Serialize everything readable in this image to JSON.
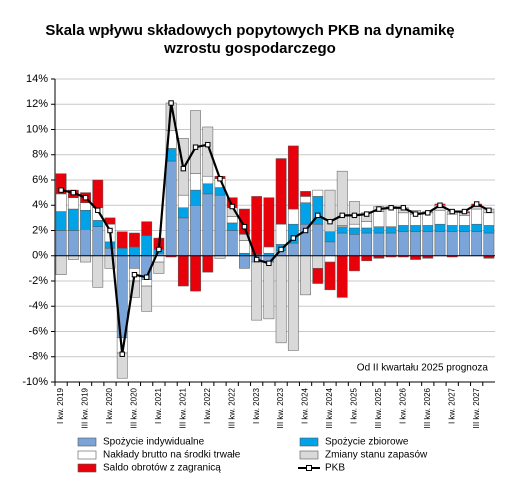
{
  "chart_data": {
    "type": "bar",
    "stacked": true,
    "title": "Skala wpływu składowych popytowych PKB na dynamikę wzrostu gospodarczego",
    "annotation": "Od II kwartału 2025 prognoza",
    "categories": [
      "I kw. 2019",
      null,
      "III kw. 2019",
      null,
      "I kw. 2020",
      null,
      "III kw. 2020",
      null,
      "I kw. 2021",
      null,
      "III kw. 2021",
      null,
      "I kw. 2022",
      null,
      "III kw. 2022",
      null,
      "I kw. 2023",
      null,
      "III kw. 2023",
      null,
      "I kw. 2024",
      null,
      "III kw. 2024",
      null,
      "I kw. 2025",
      null,
      "III kw. 2025",
      null,
      "I kw. 2026",
      null,
      "III kw. 2026",
      null,
      "I kw. 2027",
      null,
      "III kw. 2027",
      null
    ],
    "ylim": [
      -10,
      14
    ],
    "yticks": [
      {
        "value": -10,
        "label": "-10%"
      },
      {
        "value": -8,
        "label": "-8%"
      },
      {
        "value": -6,
        "label": "-6%"
      },
      {
        "value": -4,
        "label": "-4%"
      },
      {
        "value": -2,
        "label": "-2%"
      },
      {
        "value": 0,
        "label": "0%"
      },
      {
        "value": 2,
        "label": "2%"
      },
      {
        "value": 4,
        "label": "4%"
      },
      {
        "value": 6,
        "label": "6%"
      },
      {
        "value": 8,
        "label": "8%"
      },
      {
        "value": 10,
        "label": "10%"
      },
      {
        "value": 12,
        "label": "12%"
      },
      {
        "value": 14,
        "label": "14%"
      }
    ],
    "grid": true,
    "series": [
      {
        "name": "Spożycie indywidualne",
        "type": "bar",
        "color": "#7ba4d8",
        "values": [
          2.0,
          2.0,
          2.1,
          2.3,
          0.6,
          -6.5,
          -1.0,
          -1.9,
          0.2,
          7.5,
          3.0,
          4.0,
          4.9,
          4.8,
          2.0,
          -1.0,
          -0.5,
          -0.5,
          0.4,
          1.0,
          2.5,
          2.5,
          1.1,
          1.8,
          1.7,
          1.8,
          1.8,
          1.8,
          1.9,
          1.9,
          1.9,
          1.9,
          1.9,
          1.9,
          1.9,
          1.8
        ]
      },
      {
        "name": "Spożycie zbiorowe",
        "type": "bar",
        "color": "#00a2e8",
        "values": [
          1.5,
          1.7,
          1.5,
          0.5,
          0.5,
          0.6,
          0.7,
          1.6,
          0.3,
          1.0,
          0.8,
          1.2,
          0.8,
          0.6,
          0.6,
          0.2,
          0.1,
          0.2,
          0.5,
          1.5,
          1.7,
          2.2,
          0.8,
          0.5,
          0.5,
          0.4,
          0.5,
          0.5,
          0.5,
          0.5,
          0.5,
          0.6,
          0.5,
          0.5,
          0.6,
          0.6
        ]
      },
      {
        "name": "Nakłady brutto na środki trwałe",
        "type": "bar",
        "color": "#ffffff",
        "values": [
          1.4,
          0.9,
          0.6,
          1.0,
          1.4,
          -1.2,
          -1.0,
          -0.5,
          -0.5,
          1.4,
          1.0,
          1.3,
          0.6,
          0.7,
          0.5,
          1.0,
          0.0,
          0.5,
          1.6,
          1.2,
          0.5,
          0.5,
          -0.5,
          0.1,
          0.3,
          0.5,
          1.2,
          1.5,
          1.0,
          0.9,
          1.0,
          1.1,
          0.9,
          0.8,
          1.2,
          1.0
        ]
      },
      {
        "name": "Zmiany stanu zapasów",
        "type": "bar",
        "color": "#d9d9d9",
        "values": [
          -1.5,
          -0.3,
          -0.5,
          -2.5,
          -1.0,
          -2.0,
          -1.3,
          -2.0,
          -0.9,
          2.2,
          4.5,
          5.0,
          3.9,
          -0.2,
          0.7,
          0.5,
          -4.6,
          -4.5,
          -6.9,
          -7.5,
          -3.1,
          -1.0,
          3.3,
          4.3,
          1.8,
          0.7,
          0.4,
          0.1,
          0.4,
          0.3,
          0.1,
          0.4,
          0.2,
          0.2,
          0.2,
          0.3
        ]
      },
      {
        "name": "Saldo obrotów z zagranicą",
        "type": "bar",
        "color": "#e8000b",
        "values": [
          1.6,
          0.6,
          0.8,
          2.2,
          0.5,
          1.3,
          1.1,
          1.1,
          0.9,
          -0.1,
          -2.4,
          -2.8,
          -1.3,
          0.2,
          0.8,
          2.0,
          4.6,
          3.9,
          5.2,
          5.0,
          0.4,
          -1.2,
          -2.2,
          -3.3,
          -1.2,
          -0.4,
          -0.2,
          -0.1,
          -0.1,
          -0.3,
          -0.2,
          0.1,
          -0.1,
          0.1,
          0.2,
          -0.2
        ]
      },
      {
        "name": "PKB",
        "type": "line",
        "color": "#000000",
        "values": [
          5.2,
          5.0,
          4.6,
          3.6,
          2.0,
          -7.8,
          -1.5,
          -1.7,
          0.5,
          12.1,
          6.9,
          8.6,
          8.8,
          6.1,
          3.9,
          2.3,
          -0.3,
          -0.6,
          0.5,
          1.4,
          2.0,
          3.2,
          2.7,
          3.2,
          3.2,
          3.3,
          3.7,
          3.8,
          3.8,
          3.3,
          3.4,
          4.0,
          3.5,
          3.5,
          4.1,
          3.6
        ]
      }
    ]
  }
}
